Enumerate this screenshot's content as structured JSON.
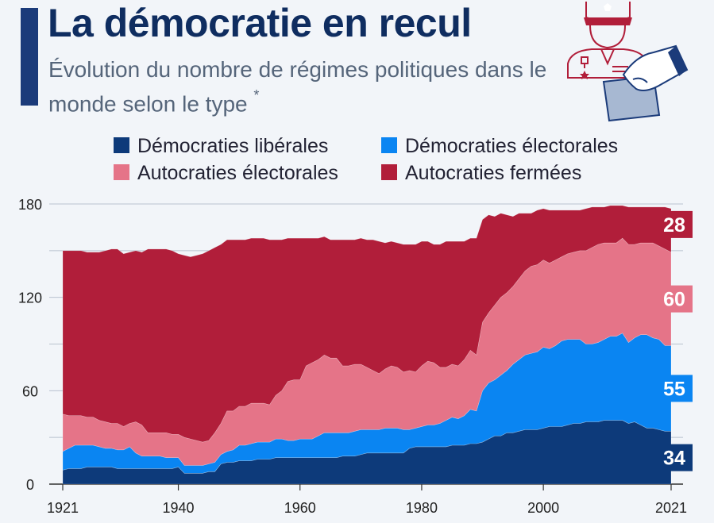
{
  "header": {
    "title": "La démocratie en recul",
    "subtitle": "Évolution du nombre de régimes politiques dans le monde selon le type",
    "subtitle_marker": "*"
  },
  "illustration": {
    "icon": "military-officer-and-ballot-hand-icon"
  },
  "colors": {
    "liberal": "#0d3a7a",
    "electoral_dem": "#0a85f2",
    "electoral_aut": "#e57488",
    "closed_aut": "#b11e3a",
    "title": "#0f2d60"
  },
  "chart_data": {
    "type": "area",
    "stacked": true,
    "title": "La démocratie en recul",
    "xlabel": "",
    "ylabel": "",
    "x_ticks": [
      "1921",
      "1940",
      "1960",
      "1980",
      "2000",
      "2021"
    ],
    "y_ticks": [
      "0",
      "60",
      "120",
      "180"
    ],
    "ylim": [
      0,
      180
    ],
    "xlim": [
      1921,
      2021
    ],
    "grid": true,
    "legend_position": "top",
    "x": [
      1921,
      1922,
      1923,
      1924,
      1925,
      1926,
      1927,
      1928,
      1929,
      1930,
      1931,
      1932,
      1933,
      1934,
      1935,
      1936,
      1937,
      1938,
      1939,
      1940,
      1941,
      1942,
      1943,
      1944,
      1945,
      1946,
      1947,
      1948,
      1949,
      1950,
      1951,
      1952,
      1953,
      1954,
      1955,
      1956,
      1957,
      1958,
      1959,
      1960,
      1961,
      1962,
      1963,
      1964,
      1965,
      1966,
      1967,
      1968,
      1969,
      1970,
      1971,
      1972,
      1973,
      1974,
      1975,
      1976,
      1977,
      1978,
      1979,
      1980,
      1981,
      1982,
      1983,
      1984,
      1985,
      1986,
      1987,
      1988,
      1989,
      1990,
      1991,
      1992,
      1993,
      1994,
      1995,
      1996,
      1997,
      1998,
      1999,
      2000,
      2001,
      2002,
      2003,
      2004,
      2005,
      2006,
      2007,
      2008,
      2009,
      2010,
      2011,
      2012,
      2013,
      2014,
      2015,
      2016,
      2017,
      2018,
      2019,
      2020,
      2021
    ],
    "series": [
      {
        "name": "Démocraties libérales",
        "values": [
          9,
          10,
          10,
          10,
          11,
          11,
          11,
          11,
          11,
          10,
          10,
          10,
          10,
          10,
          10,
          10,
          10,
          10,
          10,
          11,
          7,
          7,
          7,
          7,
          8,
          8,
          13,
          14,
          14,
          15,
          15,
          15,
          16,
          16,
          16,
          17,
          17,
          17,
          17,
          17,
          17,
          17,
          17,
          17,
          17,
          17,
          18,
          18,
          18,
          19,
          20,
          20,
          20,
          20,
          20,
          20,
          20,
          23,
          24,
          24,
          24,
          24,
          24,
          24,
          25,
          25,
          25,
          26,
          26,
          27,
          29,
          31,
          31,
          33,
          33,
          34,
          35,
          35,
          35,
          36,
          37,
          37,
          37,
          38,
          39,
          39,
          40,
          40,
          40,
          41,
          41,
          41,
          41,
          39,
          40,
          38,
          36,
          36,
          35,
          34,
          34
        ]
      },
      {
        "name": "Démocraties électorales",
        "values": [
          12,
          13,
          15,
          15,
          14,
          14,
          13,
          12,
          12,
          12,
          12,
          14,
          10,
          8,
          8,
          8,
          8,
          7,
          7,
          6,
          5,
          5,
          5,
          5,
          5,
          6,
          6,
          7,
          8,
          10,
          10,
          11,
          11,
          11,
          11,
          12,
          12,
          11,
          11,
          12,
          12,
          12,
          14,
          16,
          16,
          16,
          15,
          15,
          16,
          16,
          15,
          15,
          15,
          16,
          16,
          16,
          15,
          12,
          12,
          13,
          14,
          14,
          15,
          17,
          18,
          17,
          19,
          22,
          21,
          33,
          36,
          36,
          39,
          40,
          44,
          46,
          48,
          49,
          50,
          52,
          50,
          52,
          55,
          55,
          54,
          54,
          50,
          50,
          51,
          52,
          54,
          54,
          56,
          52,
          54,
          58,
          60,
          58,
          58,
          55,
          55
        ]
      },
      {
        "name": "Autocraties électorales",
        "values": [
          24,
          21,
          19,
          19,
          18,
          18,
          17,
          17,
          16,
          17,
          15,
          15,
          20,
          20,
          15,
          15,
          15,
          16,
          15,
          15,
          18,
          17,
          16,
          15,
          15,
          19,
          20,
          26,
          25,
          25,
          25,
          26,
          25,
          25,
          24,
          28,
          31,
          38,
          39,
          38,
          47,
          49,
          49,
          50,
          48,
          48,
          43,
          43,
          43,
          42,
          40,
          38,
          36,
          38,
          40,
          39,
          37,
          38,
          36,
          39,
          41,
          40,
          36,
          34,
          34,
          34,
          36,
          38,
          36,
          44,
          45,
          48,
          50,
          50,
          50,
          52,
          54,
          56,
          56,
          56,
          55,
          55,
          54,
          55,
          56,
          57,
          60,
          62,
          63,
          62,
          60,
          60,
          61,
          63,
          60,
          59,
          59,
          61,
          60,
          62,
          60
        ]
      },
      {
        "name": "Autocraties fermées",
        "values": [
          105,
          106,
          106,
          106,
          106,
          106,
          108,
          110,
          112,
          112,
          111,
          110,
          110,
          111,
          118,
          118,
          118,
          118,
          118,
          116,
          117,
          117,
          119,
          121,
          122,
          119,
          115,
          110,
          110,
          107,
          107,
          106,
          106,
          106,
          106,
          100,
          97,
          92,
          91,
          91,
          82,
          80,
          78,
          76,
          76,
          76,
          81,
          81,
          80,
          81,
          82,
          84,
          85,
          81,
          80,
          80,
          82,
          81,
          82,
          80,
          77,
          76,
          79,
          81,
          79,
          80,
          76,
          72,
          75,
          66,
          63,
          57,
          54,
          50,
          45,
          42,
          37,
          34,
          35,
          33,
          34,
          32,
          30,
          28,
          27,
          26,
          27,
          26,
          24,
          23,
          24,
          24,
          21,
          24,
          24,
          23,
          23,
          23,
          25,
          27,
          28
        ]
      }
    ],
    "end_labels": [
      "34",
      "55",
      "60",
      "28"
    ]
  }
}
